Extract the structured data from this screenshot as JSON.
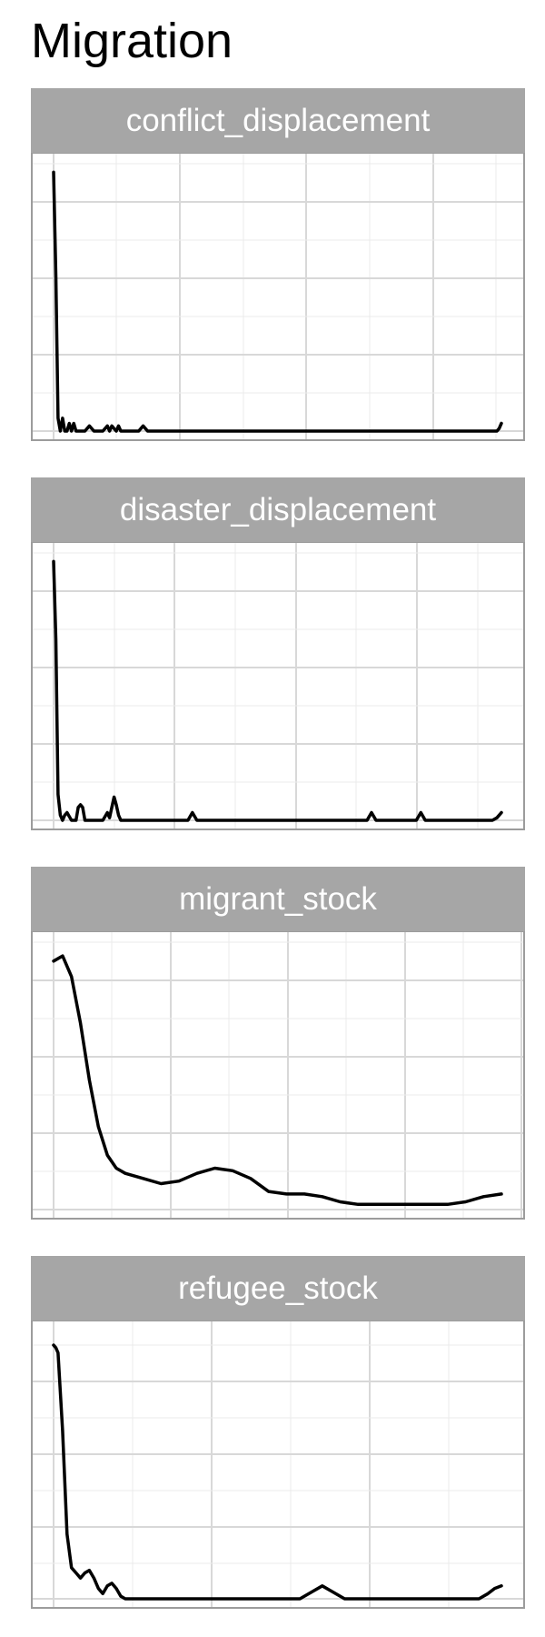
{
  "title": "Migration",
  "chart_data": [
    {
      "type": "line",
      "title": "conflict_displacement",
      "xlabel": "",
      "ylabel": "",
      "grid": true,
      "xlim": [
        0,
        1
      ],
      "ylim": [
        0,
        1.04
      ],
      "x": [
        0.0,
        0.005,
        0.01,
        0.015,
        0.02,
        0.025,
        0.03,
        0.035,
        0.04,
        0.045,
        0.05,
        0.07,
        0.08,
        0.09,
        0.11,
        0.12,
        0.125,
        0.13,
        0.14,
        0.145,
        0.15,
        0.19,
        0.2,
        0.21,
        0.4,
        0.6,
        0.8,
        0.99,
        0.995,
        1.0
      ],
      "values": [
        1.0,
        0.6,
        0.05,
        0.0,
        0.05,
        0.0,
        0.0,
        0.03,
        0.0,
        0.03,
        0.0,
        0.0,
        0.02,
        0.0,
        0.0,
        0.02,
        0.0,
        0.02,
        0.0,
        0.02,
        0.0,
        0.0,
        0.02,
        0.0,
        0.0,
        0.0,
        0.0,
        0.0,
        0.01,
        0.03
      ]
    },
    {
      "type": "line",
      "title": "disaster_displacement",
      "xlabel": "",
      "ylabel": "",
      "grid": true,
      "xlim": [
        0,
        1
      ],
      "ylim": [
        0,
        1.04
      ],
      "x": [
        0.0,
        0.005,
        0.01,
        0.015,
        0.02,
        0.025,
        0.03,
        0.04,
        0.045,
        0.05,
        0.055,
        0.06,
        0.065,
        0.07,
        0.08,
        0.11,
        0.12,
        0.125,
        0.135,
        0.14,
        0.145,
        0.15,
        0.3,
        0.31,
        0.32,
        0.7,
        0.71,
        0.72,
        0.81,
        0.82,
        0.83,
        0.98,
        0.99,
        1.0
      ],
      "values": [
        1.0,
        0.7,
        0.1,
        0.02,
        0.0,
        0.02,
        0.03,
        0.0,
        0.0,
        0.0,
        0.05,
        0.06,
        0.05,
        0.0,
        0.0,
        0.0,
        0.03,
        0.01,
        0.09,
        0.06,
        0.02,
        0.0,
        0.0,
        0.03,
        0.0,
        0.0,
        0.03,
        0.0,
        0.0,
        0.03,
        0.0,
        0.0,
        0.01,
        0.03
      ]
    },
    {
      "type": "line",
      "title": "migrant_stock",
      "xlabel": "",
      "ylabel": "",
      "grid": true,
      "xlim": [
        0,
        1
      ],
      "ylim": [
        0,
        1.04
      ],
      "x": [
        0.0,
        0.02,
        0.04,
        0.06,
        0.08,
        0.1,
        0.12,
        0.14,
        0.16,
        0.2,
        0.24,
        0.28,
        0.32,
        0.36,
        0.4,
        0.44,
        0.48,
        0.52,
        0.56,
        0.6,
        0.64,
        0.68,
        0.72,
        0.76,
        0.8,
        0.84,
        0.88,
        0.92,
        0.96,
        1.0
      ],
      "values": [
        0.96,
        0.98,
        0.9,
        0.72,
        0.5,
        0.32,
        0.21,
        0.16,
        0.14,
        0.12,
        0.1,
        0.11,
        0.14,
        0.16,
        0.15,
        0.12,
        0.07,
        0.06,
        0.06,
        0.05,
        0.03,
        0.02,
        0.02,
        0.02,
        0.02,
        0.02,
        0.02,
        0.03,
        0.05,
        0.06
      ]
    },
    {
      "type": "line",
      "title": "refugee_stock",
      "xlabel": "",
      "ylabel": "",
      "grid": true,
      "xlim": [
        0,
        1
      ],
      "ylim": [
        0,
        1.04
      ],
      "x": [
        0.0,
        0.005,
        0.01,
        0.02,
        0.03,
        0.04,
        0.05,
        0.06,
        0.07,
        0.08,
        0.09,
        0.1,
        0.11,
        0.12,
        0.13,
        0.14,
        0.15,
        0.16,
        0.17,
        0.18,
        0.2,
        0.25,
        0.3,
        0.55,
        0.58,
        0.6,
        0.62,
        0.65,
        0.8,
        0.95,
        0.97,
        0.985,
        1.0
      ],
      "values": [
        0.98,
        0.97,
        0.95,
        0.65,
        0.25,
        0.12,
        0.1,
        0.08,
        0.1,
        0.11,
        0.08,
        0.04,
        0.02,
        0.05,
        0.06,
        0.04,
        0.01,
        0.0,
        0.0,
        0.0,
        0.0,
        0.0,
        0.0,
        0.0,
        0.03,
        0.05,
        0.03,
        0.0,
        0.0,
        0.0,
        0.02,
        0.04,
        0.05
      ]
    }
  ]
}
